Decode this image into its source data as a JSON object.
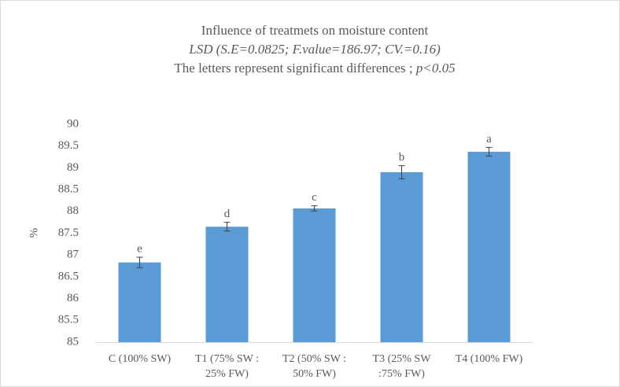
{
  "chart_data": {
    "type": "bar",
    "title": "Influence of treatmets on moisture content",
    "subtitle": "LSD (S.E=0.0825; F.value=186.97; CV.=0.16)",
    "note": [
      "The letters represent significant differences ;",
      "p<0.05"
    ],
    "y_label": "%",
    "categories": [
      "C (100% SW)",
      "T1 (75% SW :\n25% FW)",
      "T2 (50% SW :\n50% FW)",
      "T3 (25%  SW\n:75% FW)",
      "T4 (100% FW)"
    ],
    "values": [
      86.83,
      87.65,
      88.07,
      88.9,
      89.37
    ],
    "errors": [
      0.12,
      0.1,
      0.06,
      0.15,
      0.1
    ],
    "letters": [
      "e",
      "d",
      "c",
      "b",
      "a"
    ],
    "color": "#5b9bd5",
    "ylim": [
      85,
      90
    ],
    "yticks": [
      85,
      85.5,
      86,
      86.5,
      87,
      87.5,
      88,
      88.5,
      89,
      89.5,
      90
    ]
  }
}
